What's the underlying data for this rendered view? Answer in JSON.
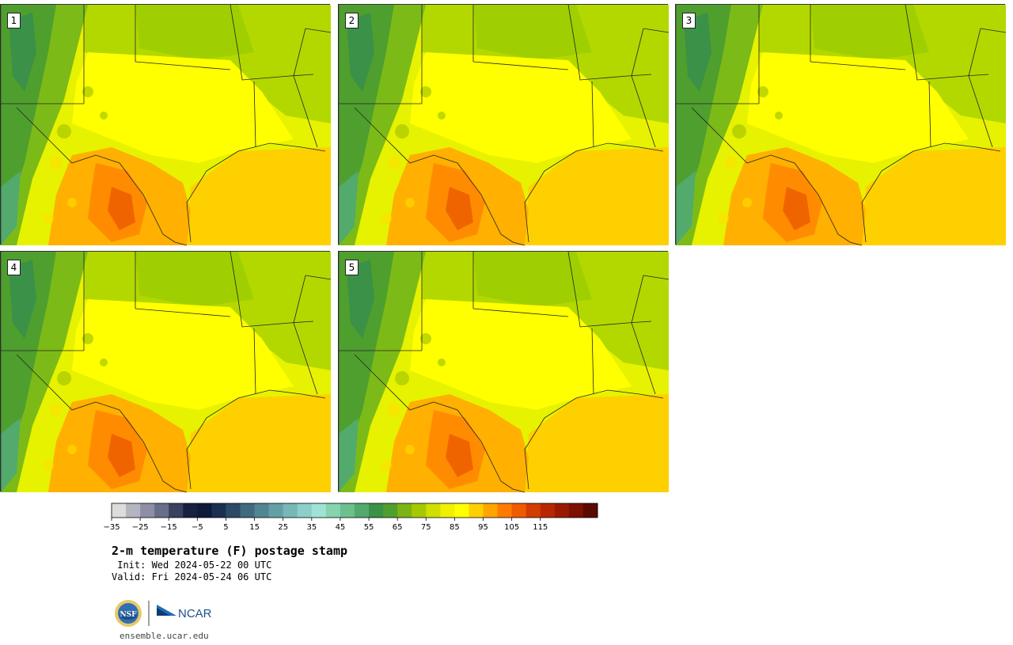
{
  "panels": [
    {
      "label": "1"
    },
    {
      "label": "2"
    },
    {
      "label": "3"
    },
    {
      "label": "4"
    },
    {
      "label": "5"
    }
  ],
  "colorbar": {
    "ticks": [
      "−35",
      "−25",
      "−15",
      "−5",
      "5",
      "15",
      "25",
      "35",
      "45",
      "55",
      "65",
      "75",
      "85",
      "95",
      "105",
      "115"
    ],
    "colors": [
      "#dcdcdc",
      "#b5b5c2",
      "#8e8ea6",
      "#676e8a",
      "#3a415f",
      "#15213f",
      "#0e1a38",
      "#1b3050",
      "#2c4a66",
      "#3f6a80",
      "#4f8692",
      "#63a0a6",
      "#77b8b7",
      "#8ccfc8",
      "#a0e3d6",
      "#87d3ae",
      "#6cc08e",
      "#52aa6d",
      "#3a9147",
      "#4f9f2e",
      "#7bb414",
      "#a6c800",
      "#cfdf00",
      "#f0f000",
      "#ffff00",
      "#ffd000",
      "#ffa500",
      "#ff7a00",
      "#f05a00",
      "#d23c00",
      "#b82800",
      "#9a1a00",
      "#7c1100",
      "#5c0a00"
    ],
    "color_notes": "34 discrete bins from light gray (cold) through blues, teals, greens, yellow, orange to dark red (hot)"
  },
  "title": "2-m temperature (F) postage stamp",
  "init": " Init: Wed 2024-05-22 00 UTC",
  "valid": "Valid: Fri 2024-05-24 06 UTC",
  "logos": {
    "nsf": "NSF",
    "ncar": "NCAR"
  },
  "url": "ensemble.ucar.edu"
}
